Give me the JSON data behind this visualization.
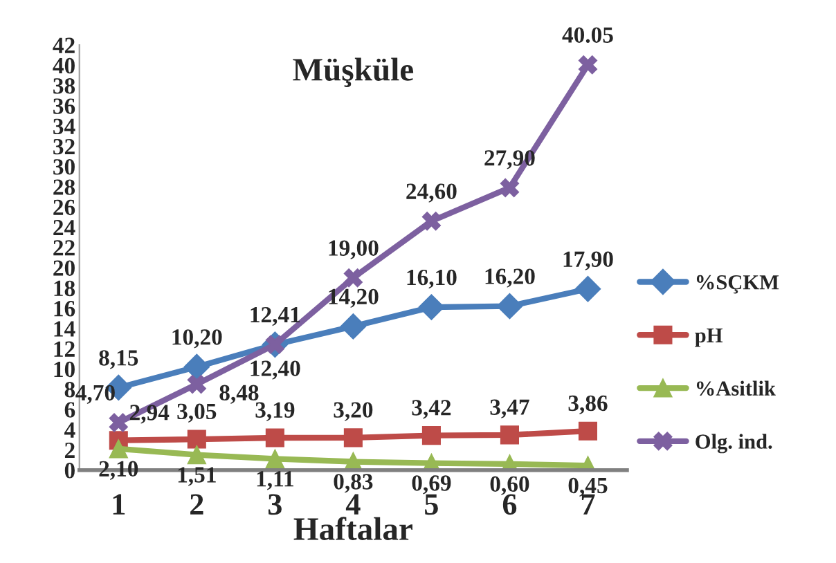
{
  "chart_data": {
    "type": "line",
    "title": "Müşküle",
    "xlabel": "Haftalar",
    "categories": [
      "1",
      "2",
      "3",
      "4",
      "5",
      "6",
      "7"
    ],
    "series": [
      {
        "name": "%SÇKM",
        "color": "#4a7ebb",
        "marker": "diamond",
        "values": [
          8.15,
          10.2,
          12.4,
          14.2,
          16.1,
          16.2,
          17.9
        ],
        "value_labels": [
          "8,15",
          "10,20",
          "12,40",
          "14,20",
          "16,10",
          "16,20",
          "17,90"
        ]
      },
      {
        "name": "pH",
        "color": "#be4b48",
        "marker": "square",
        "values": [
          2.94,
          3.05,
          3.19,
          3.2,
          3.42,
          3.47,
          3.86
        ],
        "value_labels": [
          "2,94",
          "3,05",
          "3,19",
          "3,20",
          "3,42",
          "3,47",
          "3,86"
        ]
      },
      {
        "name": "%Asitlik",
        "color": "#98b954",
        "marker": "triangle",
        "values": [
          2.1,
          1.51,
          1.11,
          0.83,
          0.69,
          0.6,
          0.45
        ],
        "value_labels": [
          "2,10",
          "1,51",
          "1,11",
          "0,83",
          "0,69",
          "0,60",
          "0,45"
        ]
      },
      {
        "name": "Olg. ind.",
        "color": "#7d60a0",
        "marker": "cross",
        "values": [
          4.7,
          8.48,
          12.41,
          19.0,
          24.6,
          27.9,
          40.05
        ],
        "value_labels": [
          "4,70",
          "8,48",
          "12,41",
          "19,00",
          "24,60",
          "27,90",
          "40.05"
        ]
      }
    ],
    "ylim": [
      0,
      42
    ],
    "yticks": [
      0,
      2,
      4,
      6,
      8,
      10,
      12,
      14,
      16,
      18,
      20,
      22,
      24,
      26,
      28,
      30,
      32,
      34,
      36,
      38,
      40,
      42
    ],
    "grid": false,
    "legend": "right"
  }
}
